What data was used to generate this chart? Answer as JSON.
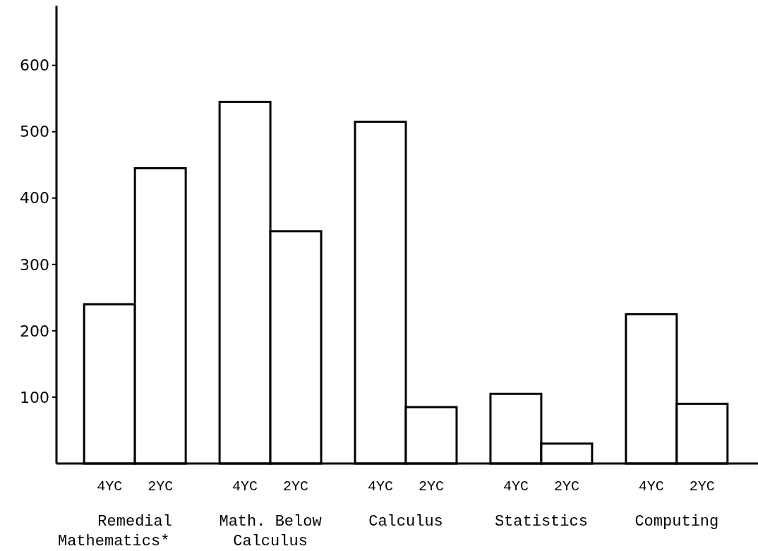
{
  "chart_data": {
    "type": "bar",
    "categories": [
      "Remedial Mathematics*",
      "Math. Below Calculus",
      "Calculus",
      "Statistics",
      "Computing"
    ],
    "series": [
      {
        "name": "4YC",
        "color": "#ffffff",
        "values": [
          240,
          545,
          515,
          105,
          225
        ]
      },
      {
        "name": "2YC",
        "color": "#ffffff",
        "values": [
          445,
          350,
          85,
          30,
          90
        ]
      }
    ],
    "ylim": [
      0,
      690
    ],
    "yticks": [
      100,
      200,
      300,
      400,
      500,
      600
    ],
    "grid": false
  }
}
